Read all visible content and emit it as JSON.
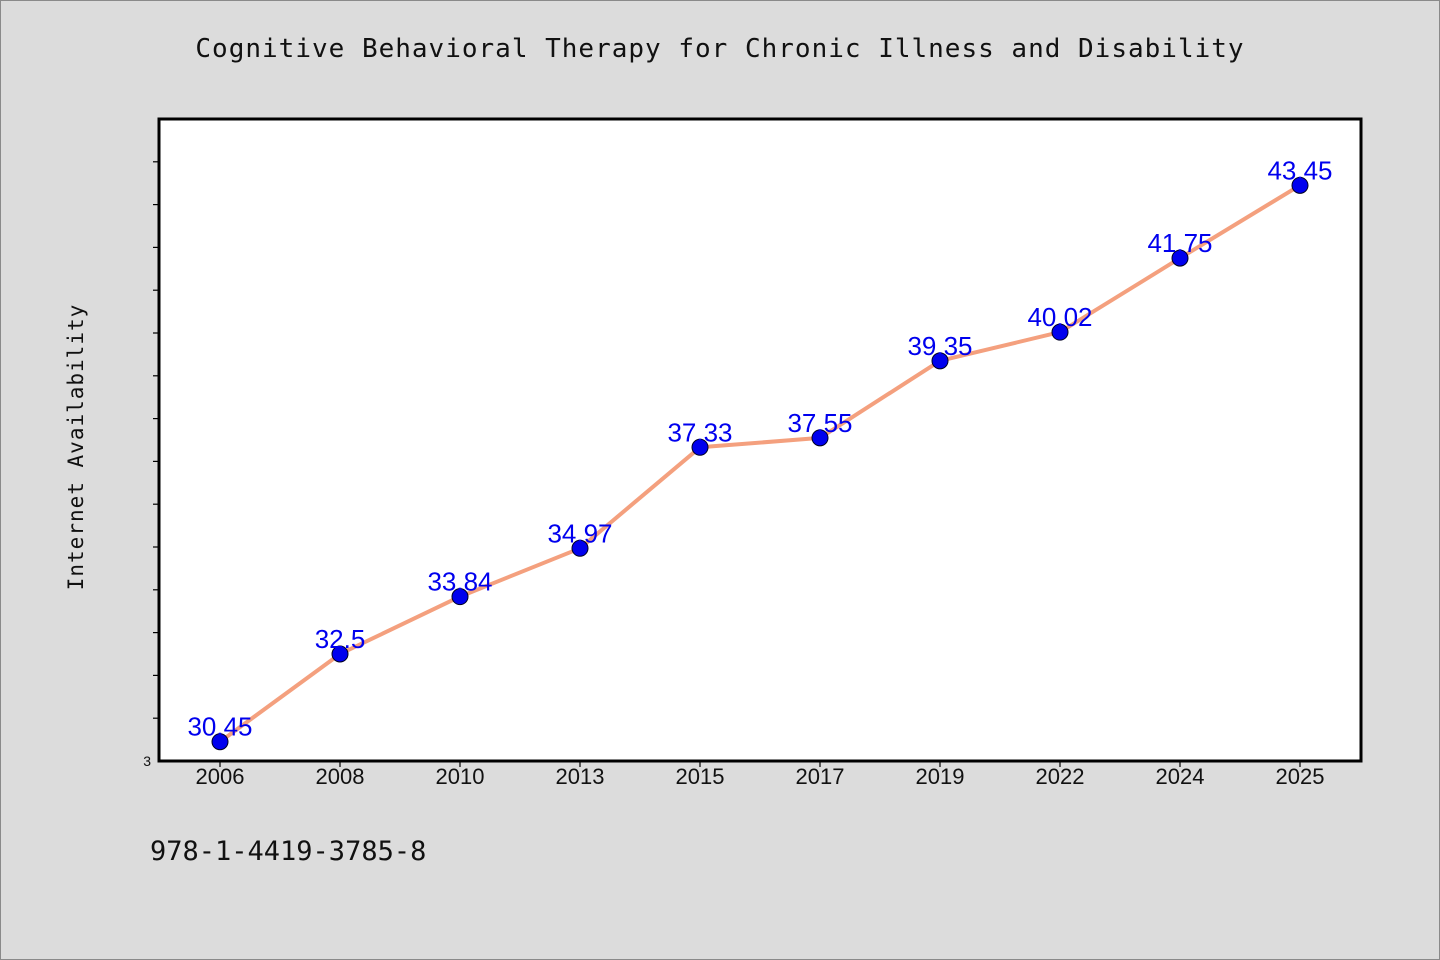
{
  "isbn": "978-1-4419-3785-8",
  "colors": {
    "background": "#dcdcdc",
    "plot_background": "#ffffff",
    "line": "#f4a07e",
    "marker": "#0000ee",
    "data_label": "#0000ee"
  },
  "chart_data": {
    "type": "line",
    "title": "Cognitive Behavioral Therapy for Chronic Illness and Disability",
    "xlabel": "",
    "ylabel": "Internet Availability",
    "categories": [
      "2006",
      "2008",
      "2010",
      "2013",
      "2015",
      "2017",
      "2019",
      "2022",
      "2024",
      "2025"
    ],
    "series": [
      {
        "values": [
          30.45,
          32.5,
          33.84,
          34.97,
          37.33,
          37.55,
          39.35,
          40.02,
          41.75,
          43.45
        ]
      }
    ],
    "data_labels": [
      "30.45",
      "32.5",
      "33.84",
      "34.97",
      "37.33",
      "37.55",
      "39.35",
      "40.02",
      "41.75",
      "43.45"
    ],
    "y_tick_labels": [
      "3"
    ],
    "ylim": [
      30.0,
      45.0
    ],
    "y_minor_tick_step": 1,
    "grid": false,
    "legend": "none"
  }
}
